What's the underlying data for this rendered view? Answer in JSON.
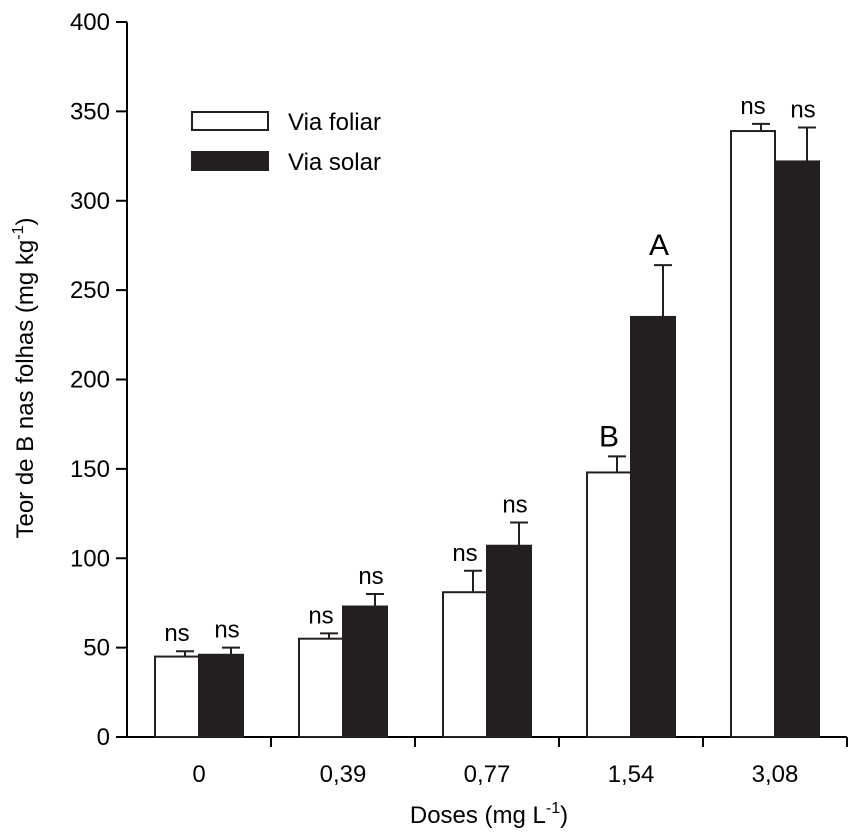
{
  "chart_data": {
    "type": "bar",
    "xlabel": "Doses (mg L",
    "xlabel_sup": "-1",
    "xlabel_end": ")",
    "ylabel": "Teor de B nas folhas (mg kg",
    "ylabel_sup": "-1",
    "ylabel_end": ")",
    "ylim": [
      0,
      400
    ],
    "yticks": [
      "0",
      "50",
      "100",
      "150",
      "200",
      "250",
      "300",
      "350",
      "400"
    ],
    "categories": [
      "0",
      "0,39",
      "0,77",
      "1,54",
      "3,08"
    ],
    "legend_position": "top-left",
    "series": [
      {
        "name": "Via foliar",
        "color": "#ffffff",
        "values": [
          45,
          55,
          81,
          148,
          339
        ],
        "errors": [
          3,
          3,
          12,
          9,
          4
        ],
        "labels": [
          "ns",
          "ns",
          "ns",
          "B",
          "ns"
        ]
      },
      {
        "name": "Via solar",
        "color": "#231f20",
        "values": [
          46,
          73,
          107,
          235,
          322
        ],
        "errors": [
          4,
          7,
          13,
          29,
          19
        ],
        "labels": [
          "ns",
          "ns",
          "ns",
          "A",
          "ns"
        ]
      }
    ]
  }
}
